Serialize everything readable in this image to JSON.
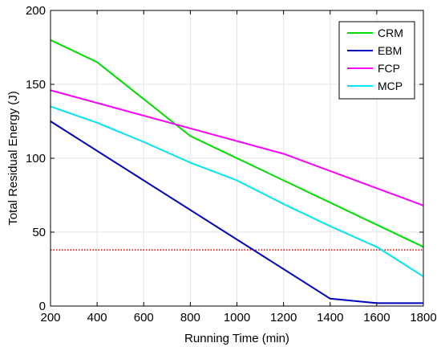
{
  "chart_data": {
    "type": "line",
    "xlabel": "Running Time (min)",
    "ylabel": "Total Residual Energy (J)",
    "xlim": [
      200,
      1800
    ],
    "ylim": [
      0,
      200
    ],
    "xticks": [
      200,
      400,
      600,
      800,
      1000,
      1200,
      1400,
      1600,
      1800
    ],
    "yticks": [
      0,
      50,
      100,
      150,
      200
    ],
    "grid": true,
    "legend_position": "top-right",
    "series": [
      {
        "name": "CRM",
        "color": "#00dd00",
        "x": [
          200,
          400,
          800,
          1800
        ],
        "y": [
          180,
          165,
          115,
          40
        ]
      },
      {
        "name": "EBM",
        "color": "#0000bb",
        "x": [
          200,
          1400,
          1600,
          1800
        ],
        "y": [
          125,
          5,
          2,
          2
        ]
      },
      {
        "name": "FCP",
        "color": "#ff00ff",
        "x": [
          200,
          1200,
          1800
        ],
        "y": [
          146,
          103,
          68
        ]
      },
      {
        "name": "MCP",
        "color": "#00e5ee",
        "x": [
          200,
          400,
          600,
          800,
          1000,
          1200,
          1400,
          1600,
          1800
        ],
        "y": [
          135,
          124,
          111,
          97,
          85,
          69,
          54,
          40,
          20
        ]
      }
    ],
    "reference_line": {
      "y": 38,
      "color": "#dd0000",
      "style": "dotted"
    }
  }
}
